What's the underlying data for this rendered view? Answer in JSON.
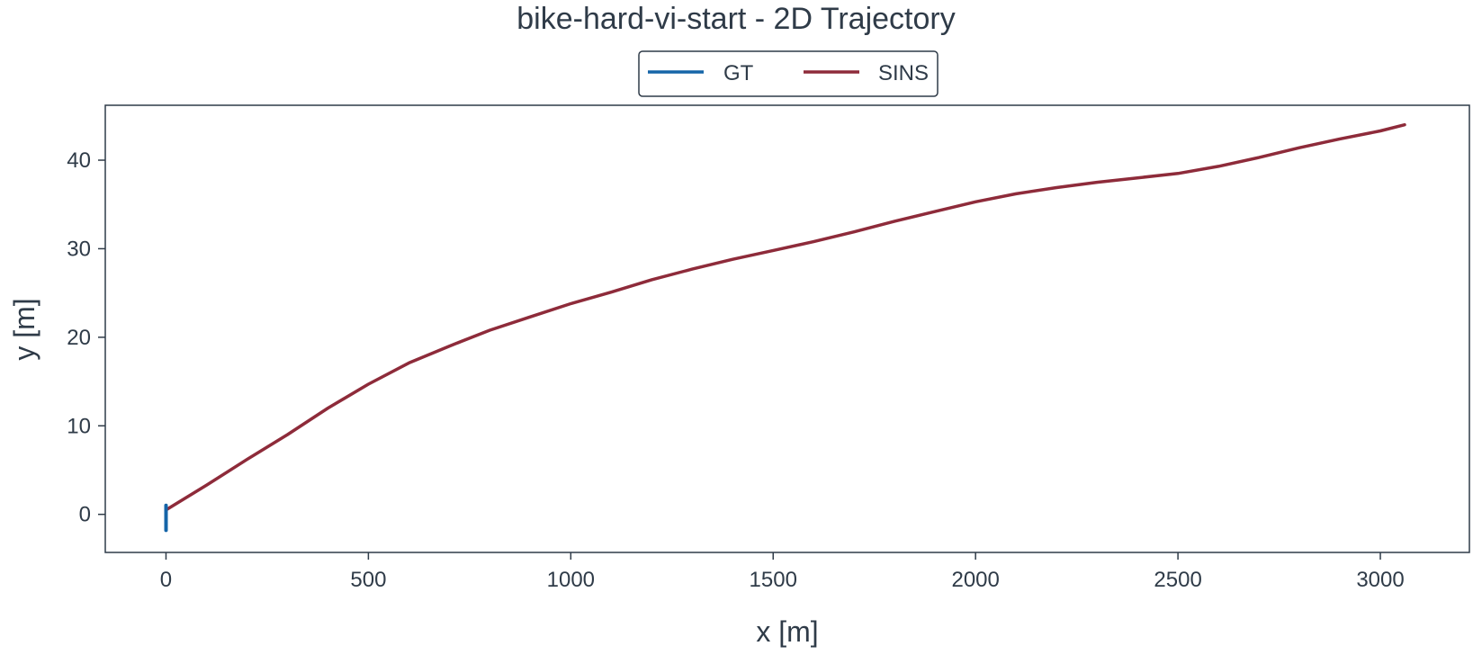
{
  "chart_data": {
    "type": "line",
    "title": "bike-hard-vi-start - 2D Trajectory",
    "xlabel": "x [m]",
    "ylabel": "y [m]",
    "xlim": [
      -150,
      3220
    ],
    "ylim": [
      -4.3,
      46.2
    ],
    "xticks": [
      0,
      500,
      1000,
      1500,
      2000,
      2500,
      3000
    ],
    "yticks": [
      0,
      10,
      20,
      30,
      40
    ],
    "grid": false,
    "legend": {
      "placement": "top-center",
      "entries": [
        "GT",
        "SINS"
      ]
    },
    "series": [
      {
        "name": "GT",
        "color": "#1565a8",
        "x": [
          0,
          0,
          0,
          0,
          0
        ],
        "y": [
          1.0,
          0.3,
          -0.5,
          -1.2,
          -1.8
        ]
      },
      {
        "name": "SINS",
        "color": "#8e2b3a",
        "x": [
          0,
          100,
          200,
          300,
          400,
          500,
          600,
          700,
          800,
          900,
          1000,
          1100,
          1200,
          1300,
          1400,
          1500,
          1600,
          1700,
          1800,
          1900,
          2000,
          2100,
          2200,
          2300,
          2400,
          2500,
          2600,
          2700,
          2800,
          2900,
          3000,
          3060
        ],
        "y": [
          0.5,
          3.3,
          6.2,
          9.0,
          12.0,
          14.7,
          17.1,
          19.0,
          20.8,
          22.3,
          23.8,
          25.1,
          26.5,
          27.7,
          28.8,
          29.8,
          30.8,
          31.9,
          33.1,
          34.2,
          35.3,
          36.2,
          36.9,
          37.5,
          38.0,
          38.5,
          39.3,
          40.3,
          41.4,
          42.4,
          43.3,
          44.0
        ]
      }
    ]
  }
}
